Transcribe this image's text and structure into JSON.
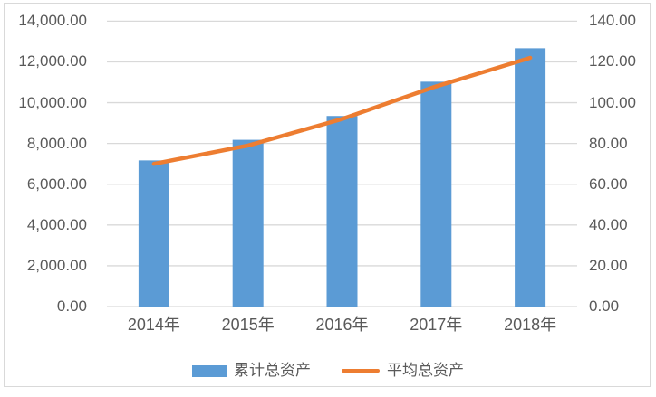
{
  "chart_data": {
    "type": "combo",
    "title": "",
    "categories": [
      "2014年",
      "2015年",
      "2016年",
      "2017年",
      "2018年"
    ],
    "series": [
      {
        "name": "累计总资产",
        "type": "bar",
        "axis": "left",
        "values": [
          7170,
          8180,
          9350,
          11030,
          12670
        ],
        "color": "#5B9BD5"
      },
      {
        "name": "平均总资产",
        "type": "line",
        "axis": "right",
        "values": [
          70,
          79,
          92,
          108,
          122
        ],
        "color": "#ED7D31"
      }
    ],
    "left_axis": {
      "min": 0,
      "max": 14000,
      "step": 2000,
      "tick_labels": [
        "0.00",
        "2,000.00",
        "4,000.00",
        "6,000.00",
        "8,000.00",
        "10,000.00",
        "12,000.00",
        "14,000.00"
      ]
    },
    "right_axis": {
      "min": 0,
      "max": 140,
      "step": 20,
      "tick_labels": [
        "0.00",
        "20.00",
        "40.00",
        "60.00",
        "80.00",
        "100.00",
        "120.00",
        "140.00"
      ]
    },
    "grid": true,
    "legend_position": "bottom",
    "colors": {
      "background": "#FFFFFF",
      "border": "#D9D9D9",
      "gridline": "#D9D9D9",
      "axis_text": "#595959"
    }
  }
}
